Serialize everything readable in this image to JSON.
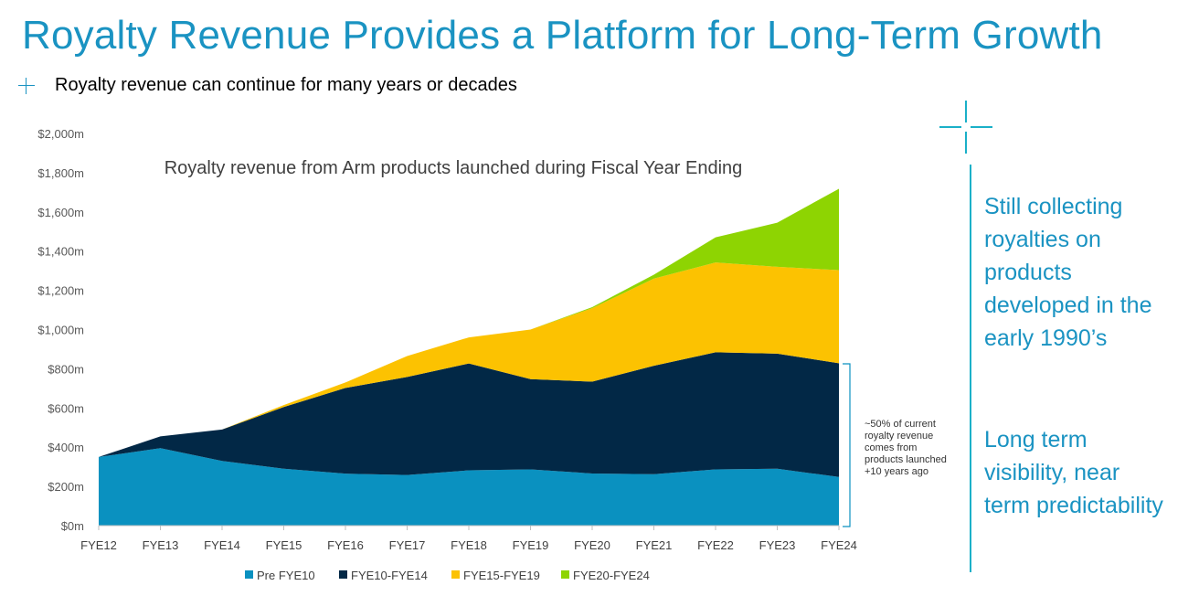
{
  "page": {
    "title": "Royalty Revenue Provides a Platform for Long-Term Growth",
    "bullet": "Royalty revenue can continue for many years or decades"
  },
  "side": {
    "text1": [
      "Still collecting",
      "royalties on",
      "products",
      "developed in the",
      "early 1990’s"
    ],
    "text2": [
      "Long term",
      "visibility, near",
      "term predictability"
    ]
  },
  "annotation": {
    "lines": [
      "~50% of current",
      "royalty revenue",
      "comes from",
      "products launched",
      "+10 years ago"
    ]
  },
  "chart_data": {
    "type": "area",
    "stacked": true,
    "title": "Royalty revenue from Arm products launched during Fiscal Year Ending",
    "categories": [
      "FYE12",
      "FYE13",
      "FYE14",
      "FYE15",
      "FYE16",
      "FYE17",
      "FYE18",
      "FYE19",
      "FYE20",
      "FYE21",
      "FYE22",
      "FYE23",
      "FYE24"
    ],
    "y_ticks": [
      "$0m",
      "$200m",
      "$400m",
      "$600m",
      "$800m",
      "$1,000m",
      "$1,200m",
      "$1,400m",
      "$1,600m",
      "$1,800m",
      "$2,000m"
    ],
    "ylim": [
      0,
      2000
    ],
    "legend_position": "bottom",
    "series": [
      {
        "name": "Pre FYE10",
        "color": "#0a91c0",
        "values": [
          350,
          395,
          330,
          290,
          265,
          258,
          282,
          287,
          266,
          262,
          287,
          290,
          248
        ]
      },
      {
        "name": "FYE10-FYE14",
        "color": "#022846",
        "values": [
          0,
          60,
          160,
          315,
          437,
          500,
          545,
          460,
          468,
          553,
          597,
          587,
          580
        ]
      },
      {
        "name": "FYE15-FYE19",
        "color": "#fcc201",
        "values": [
          0,
          0,
          0,
          10,
          28,
          107,
          133,
          253,
          375,
          445,
          458,
          443,
          475
        ]
      },
      {
        "name": "FYE20-FYE24",
        "color": "#8ed402",
        "values": [
          0,
          0,
          0,
          0,
          0,
          0,
          0,
          0,
          5,
          20,
          128,
          225,
          415
        ]
      }
    ]
  }
}
